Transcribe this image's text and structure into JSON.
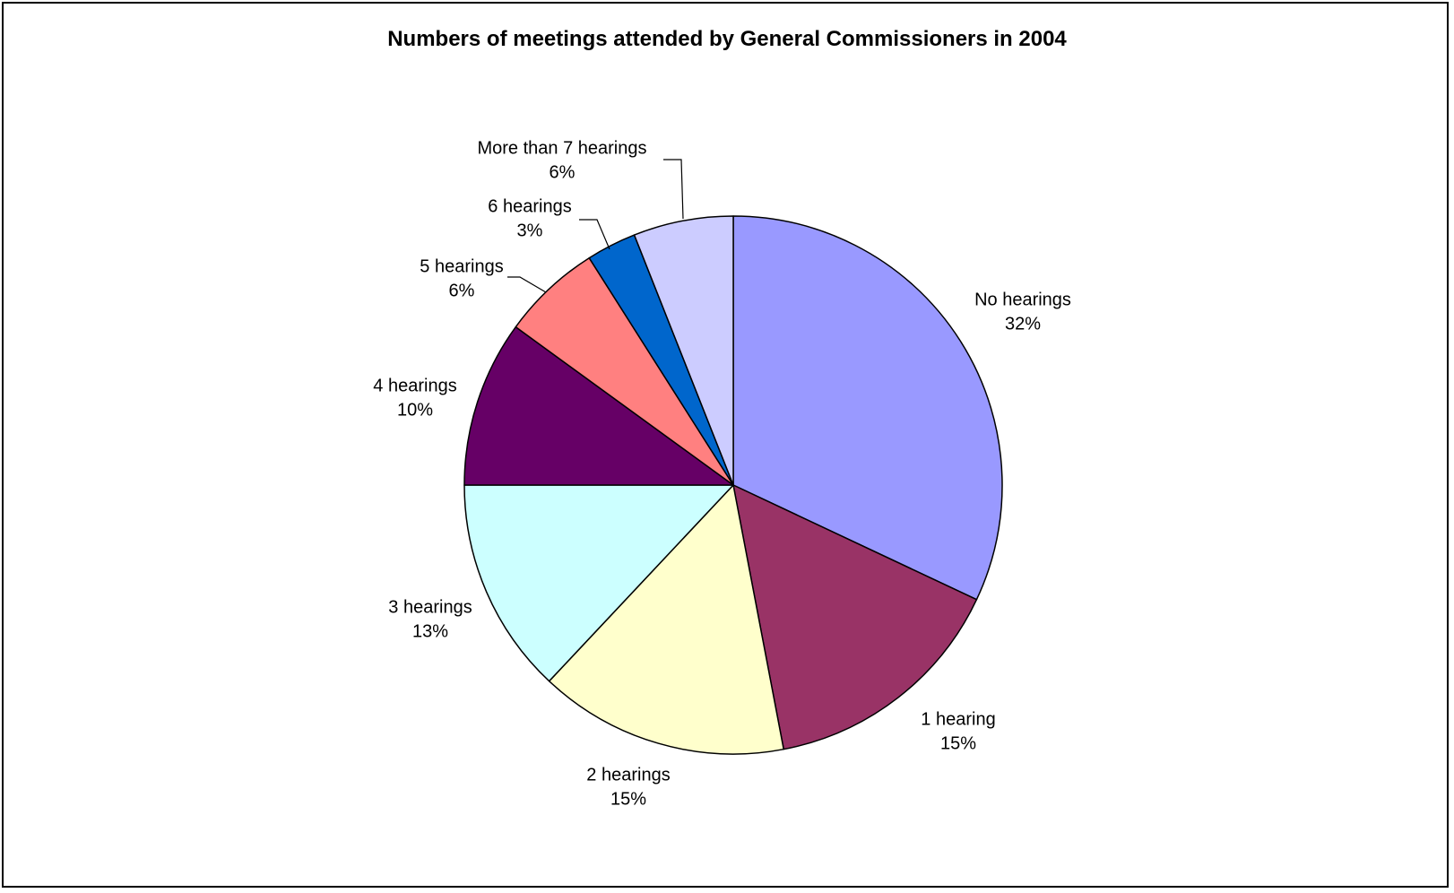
{
  "chart_data": {
    "type": "pie",
    "title": "Numbers of meetings attended by General Commissioners in 2004",
    "start_angle_deg": 0,
    "direction": "clockwise",
    "slices": [
      {
        "label": "No hearings",
        "percent_label": "32%",
        "value": 32,
        "color": "#9999FF"
      },
      {
        "label": "1 hearing",
        "percent_label": "15%",
        "value": 15,
        "color": "#993366"
      },
      {
        "label": "2 hearings",
        "percent_label": "15%",
        "value": 15,
        "color": "#FFFFCC"
      },
      {
        "label": "3 hearings",
        "percent_label": "13%",
        "value": 13,
        "color": "#CCFFFF"
      },
      {
        "label": "4 hearings",
        "percent_label": "10%",
        "value": 10,
        "color": "#660066"
      },
      {
        "label": "5 hearings",
        "percent_label": "6%",
        "value": 6,
        "color": "#FF8080"
      },
      {
        "label": "6 hearings",
        "percent_label": "3%",
        "value": 3,
        "color": "#0066CC"
      },
      {
        "label": "More than 7 hearings",
        "percent_label": "6%",
        "value": 6,
        "color": "#CCCCFF"
      }
    ]
  }
}
